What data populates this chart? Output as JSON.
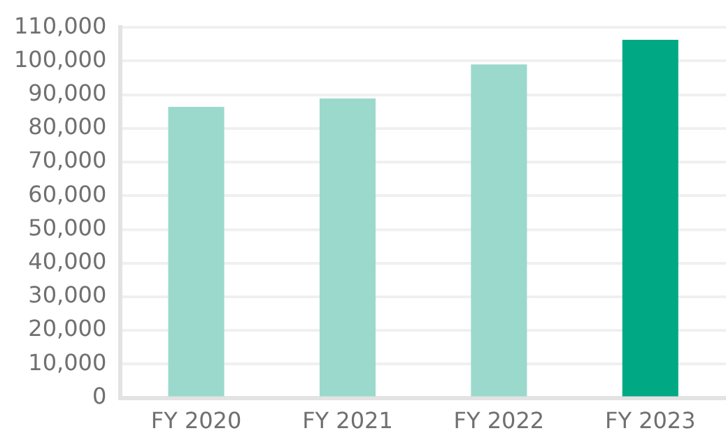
{
  "chart_data": {
    "type": "bar",
    "categories": [
      "FY 2020",
      "FY 2021",
      "FY 2022",
      "FY 2023"
    ],
    "values": [
      86400,
      88900,
      99000,
      106300
    ],
    "colors": [
      "#9bd9cc",
      "#9bd9cc",
      "#9bd9cc",
      "#00a984"
    ],
    "ylim": [
      0,
      110000
    ],
    "yticks": [
      {
        "value": 0,
        "label": "0"
      },
      {
        "value": 10000,
        "label": "10,000"
      },
      {
        "value": 20000,
        "label": "20,000"
      },
      {
        "value": 30000,
        "label": "30,000"
      },
      {
        "value": 40000,
        "label": "40,000"
      },
      {
        "value": 50000,
        "label": "50,000"
      },
      {
        "value": 60000,
        "label": "60,000"
      },
      {
        "value": 70000,
        "label": "70,000"
      },
      {
        "value": 80000,
        "label": "80,000"
      },
      {
        "value": 90000,
        "label": "90,000"
      },
      {
        "value": 100000,
        "label": "100,000"
      },
      {
        "value": 110000,
        "label": "110,000"
      }
    ],
    "grid": "y"
  }
}
